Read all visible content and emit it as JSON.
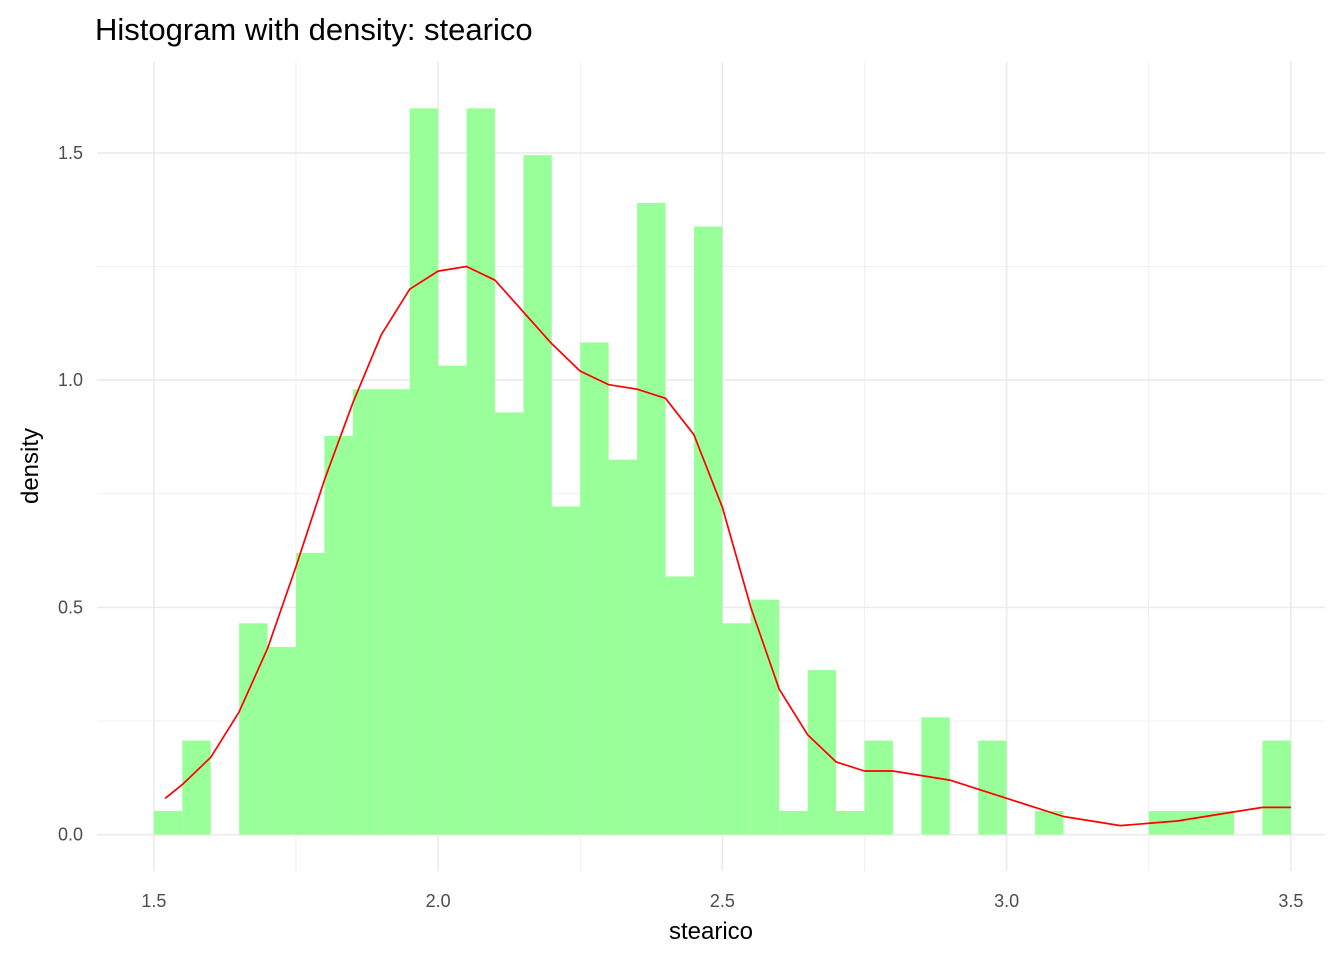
{
  "chart_data": {
    "type": "bar",
    "title": "Histogram with density: stearico",
    "xlabel": "stearico",
    "ylabel": "density",
    "xlim": [
      1.4,
      3.56
    ],
    "ylim": [
      -0.08,
      1.7
    ],
    "x_ticks": [
      1.5,
      2.0,
      2.5,
      3.0,
      3.5
    ],
    "x_tick_labels": [
      "1.5",
      "2.0",
      "2.5",
      "3.0",
      "3.5"
    ],
    "y_ticks": [
      0.0,
      0.5,
      1.0,
      1.5
    ],
    "y_tick_labels": [
      "0.0",
      "0.5",
      "1.0",
      "1.5"
    ],
    "grid": true,
    "bin_width": 0.05,
    "bins": [
      {
        "x0": 1.5,
        "x1": 1.55,
        "density": 0.052
      },
      {
        "x0": 1.55,
        "x1": 1.6,
        "density": 0.207
      },
      {
        "x0": 1.6,
        "x1": 1.65,
        "density": 0.0
      },
      {
        "x0": 1.65,
        "x1": 1.7,
        "density": 0.465
      },
      {
        "x0": 1.7,
        "x1": 1.75,
        "density": 0.413
      },
      {
        "x0": 1.75,
        "x1": 1.8,
        "density": 0.62
      },
      {
        "x0": 1.8,
        "x1": 1.85,
        "density": 0.877
      },
      {
        "x0": 1.85,
        "x1": 1.9,
        "density": 0.98
      },
      {
        "x0": 1.9,
        "x1": 1.95,
        "density": 0.98
      },
      {
        "x0": 1.95,
        "x1": 2.0,
        "density": 1.598
      },
      {
        "x0": 2.0,
        "x1": 2.05,
        "density": 1.032
      },
      {
        "x0": 2.05,
        "x1": 2.1,
        "density": 1.598
      },
      {
        "x0": 2.1,
        "x1": 2.15,
        "density": 0.929
      },
      {
        "x0": 2.15,
        "x1": 2.2,
        "density": 1.495
      },
      {
        "x0": 2.2,
        "x1": 2.25,
        "density": 0.722
      },
      {
        "x0": 2.25,
        "x1": 2.3,
        "density": 1.083
      },
      {
        "x0": 2.3,
        "x1": 2.35,
        "density": 0.825
      },
      {
        "x0": 2.35,
        "x1": 2.4,
        "density": 1.39
      },
      {
        "x0": 2.4,
        "x1": 2.45,
        "density": 0.568
      },
      {
        "x0": 2.45,
        "x1": 2.5,
        "density": 1.338
      },
      {
        "x0": 2.5,
        "x1": 2.55,
        "density": 0.465
      },
      {
        "x0": 2.55,
        "x1": 2.6,
        "density": 0.517
      },
      {
        "x0": 2.6,
        "x1": 2.65,
        "density": 0.052
      },
      {
        "x0": 2.65,
        "x1": 2.7,
        "density": 0.362
      },
      {
        "x0": 2.7,
        "x1": 2.75,
        "density": 0.052
      },
      {
        "x0": 2.75,
        "x1": 2.8,
        "density": 0.207
      },
      {
        "x0": 2.8,
        "x1": 2.85,
        "density": 0.0
      },
      {
        "x0": 2.85,
        "x1": 2.9,
        "density": 0.258
      },
      {
        "x0": 2.9,
        "x1": 2.95,
        "density": 0.0
      },
      {
        "x0": 2.95,
        "x1": 3.0,
        "density": 0.207
      },
      {
        "x0": 3.0,
        "x1": 3.05,
        "density": 0.0
      },
      {
        "x0": 3.05,
        "x1": 3.1,
        "density": 0.052
      },
      {
        "x0": 3.1,
        "x1": 3.15,
        "density": 0.0
      },
      {
        "x0": 3.15,
        "x1": 3.2,
        "density": 0.0
      },
      {
        "x0": 3.2,
        "x1": 3.25,
        "density": 0.0
      },
      {
        "x0": 3.25,
        "x1": 3.3,
        "density": 0.052
      },
      {
        "x0": 3.3,
        "x1": 3.35,
        "density": 0.052
      },
      {
        "x0": 3.35,
        "x1": 3.4,
        "density": 0.052
      },
      {
        "x0": 3.4,
        "x1": 3.45,
        "density": 0.0
      },
      {
        "x0": 3.45,
        "x1": 3.5,
        "density": 0.207
      }
    ],
    "density_curve": {
      "x": [
        1.52,
        1.55,
        1.6,
        1.65,
        1.7,
        1.75,
        1.8,
        1.85,
        1.9,
        1.95,
        2.0,
        2.05,
        2.1,
        2.15,
        2.2,
        2.25,
        2.3,
        2.35,
        2.4,
        2.45,
        2.5,
        2.55,
        2.6,
        2.65,
        2.7,
        2.75,
        2.8,
        2.9,
        3.0,
        3.1,
        3.2,
        3.3,
        3.4,
        3.45,
        3.5
      ],
      "y": [
        0.08,
        0.11,
        0.17,
        0.27,
        0.41,
        0.59,
        0.78,
        0.95,
        1.1,
        1.2,
        1.24,
        1.25,
        1.22,
        1.15,
        1.08,
        1.02,
        0.99,
        0.98,
        0.96,
        0.88,
        0.72,
        0.5,
        0.32,
        0.22,
        0.16,
        0.14,
        0.14,
        0.12,
        0.08,
        0.04,
        0.02,
        0.03,
        0.05,
        0.06,
        0.06
      ]
    },
    "colors": {
      "bar_fill": "#99ff99",
      "density_line": "#ff0000",
      "grid": "#ebebeb",
      "background": "#ffffff"
    }
  }
}
